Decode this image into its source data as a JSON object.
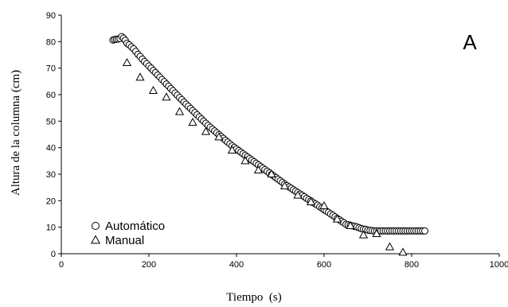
{
  "chart_data": {
    "type": "scatter",
    "xlabel": "Tiempo  (s)",
    "ylabel": "Altura de la columna (cm)",
    "annotation": "A",
    "xlim": [
      0,
      1000
    ],
    "ylim": [
      0,
      90
    ],
    "xticks": [
      0,
      200,
      400,
      600,
      800,
      1000
    ],
    "yticks": [
      0,
      10,
      20,
      30,
      40,
      50,
      60,
      70,
      80,
      90
    ],
    "grid": false,
    "legend_position": "bottom-left",
    "series": [
      {
        "name": "Automático",
        "marker": "circle",
        "color": "#000000",
        "x": [
          118,
          122,
          126,
          130,
          134,
          138,
          142,
          146,
          150,
          155,
          160,
          165,
          170,
          175,
          180,
          185,
          190,
          195,
          200,
          205,
          210,
          215,
          220,
          225,
          230,
          235,
          240,
          245,
          250,
          255,
          260,
          265,
          270,
          275,
          280,
          285,
          290,
          295,
          300,
          305,
          310,
          315,
          320,
          325,
          330,
          335,
          340,
          345,
          350,
          355,
          360,
          365,
          370,
          375,
          380,
          385,
          390,
          395,
          400,
          405,
          410,
          415,
          420,
          425,
          430,
          435,
          440,
          445,
          450,
          455,
          460,
          465,
          470,
          475,
          480,
          485,
          490,
          495,
          500,
          505,
          510,
          515,
          520,
          525,
          530,
          535,
          540,
          545,
          550,
          555,
          560,
          565,
          570,
          575,
          580,
          585,
          590,
          595,
          600,
          605,
          610,
          615,
          620,
          625,
          630,
          635,
          640,
          645,
          650,
          655,
          660,
          665,
          670,
          675,
          680,
          685,
          690,
          695,
          700,
          705,
          710,
          715,
          720,
          725,
          730,
          735,
          740,
          745,
          750,
          755,
          760,
          765,
          770,
          775,
          780,
          785,
          790,
          795,
          800,
          805,
          810,
          815,
          820,
          825,
          830
        ],
        "y": [
          80.6,
          80.8,
          80.9,
          81.0,
          81.2,
          81.9,
          81.3,
          80.5,
          79.4,
          78.8,
          78.0,
          77.3,
          76.3,
          75.2,
          74.4,
          73.4,
          72.5,
          71.7,
          70.8,
          70.0,
          69.1,
          68.3,
          67.4,
          66.6,
          65.7,
          64.9,
          64.0,
          63.2,
          62.3,
          61.5,
          60.6,
          59.8,
          58.9,
          58.1,
          57.2,
          56.4,
          55.6,
          54.8,
          54.0,
          53.2,
          52.4,
          51.6,
          50.8,
          50.0,
          49.2,
          48.4,
          47.7,
          47.0,
          46.3,
          45.6,
          44.9,
          44.2,
          43.5,
          42.8,
          42.1,
          41.4,
          40.7,
          40.1,
          39.5,
          38.9,
          38.3,
          37.7,
          37.1,
          36.5,
          35.9,
          35.3,
          34.7,
          34.1,
          33.5,
          32.9,
          32.3,
          31.7,
          31.1,
          30.5,
          29.9,
          29.3,
          28.7,
          28.1,
          27.5,
          26.9,
          26.3,
          25.7,
          25.2,
          24.7,
          24.1,
          23.6,
          23.1,
          22.5,
          22.0,
          21.5,
          20.9,
          20.4,
          19.9,
          19.3,
          18.8,
          18.3,
          17.7,
          17.2,
          16.6,
          16.1,
          15.6,
          15.0,
          14.5,
          13.9,
          13.3,
          12.8,
          12.2,
          11.7,
          11.1,
          10.9,
          10.7,
          10.5,
          10.3,
          10.1,
          9.8,
          9.5,
          9.3,
          9.2,
          8.9,
          8.8,
          8.7,
          8.6,
          8.6,
          8.6,
          8.6,
          8.6,
          8.6,
          8.6,
          8.6,
          8.6,
          8.6,
          8.6,
          8.6,
          8.6,
          8.6,
          8.6,
          8.6,
          8.6,
          8.6,
          8.6,
          8.6,
          8.6,
          8.6,
          8.6,
          8.6
        ]
      },
      {
        "name": "Manual",
        "marker": "triangle",
        "color": "#000000",
        "x": [
          150,
          180,
          210,
          240,
          270,
          300,
          330,
          360,
          390,
          420,
          450,
          480,
          510,
          540,
          570,
          600,
          630,
          660,
          690,
          720,
          750,
          780
        ],
        "y": [
          72.0,
          66.5,
          61.5,
          59.0,
          53.5,
          49.5,
          46.0,
          44.0,
          39.0,
          35.0,
          31.5,
          30.0,
          25.5,
          22.0,
          19.5,
          18.0,
          13.0,
          10.5,
          7.0,
          7.5,
          2.5,
          0.5
        ]
      }
    ]
  }
}
